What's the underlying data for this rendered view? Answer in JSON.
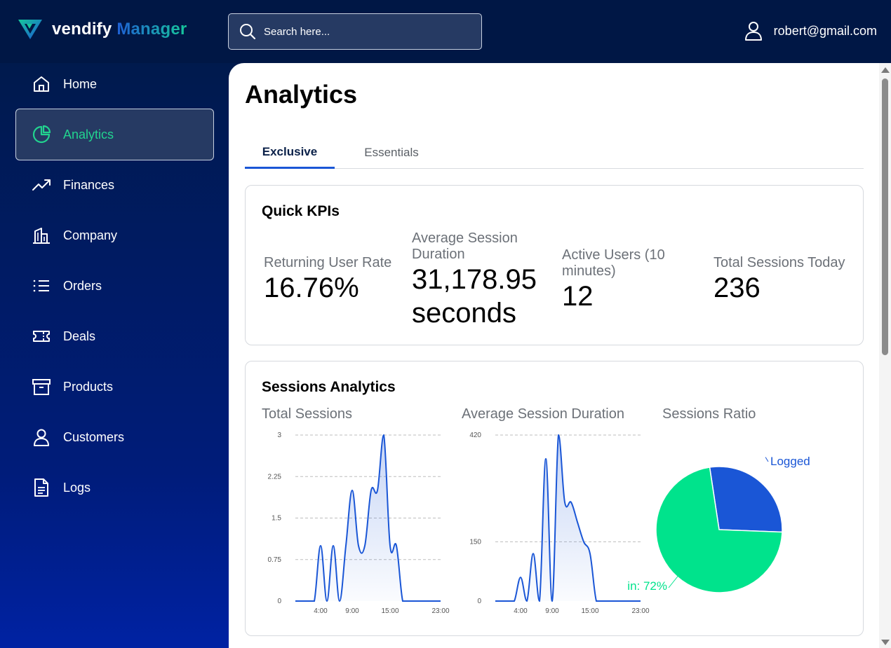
{
  "app": {
    "brand_part1": "vendify",
    "brand_part2": "Manager",
    "colors": {
      "accent": "#22d38f",
      "brand_blue": "#1a56d6",
      "navy": "#001745"
    }
  },
  "header": {
    "search_placeholder": "Search here...",
    "user_email": "robert@gmail.com"
  },
  "sidebar": {
    "items": [
      {
        "label": "Home",
        "icon": "home-icon"
      },
      {
        "label": "Analytics",
        "icon": "pie-chart-icon",
        "active": true
      },
      {
        "label": "Finances",
        "icon": "trending-up-icon"
      },
      {
        "label": "Company",
        "icon": "building-icon"
      },
      {
        "label": "Orders",
        "icon": "list-icon"
      },
      {
        "label": "Deals",
        "icon": "ticket-icon"
      },
      {
        "label": "Products",
        "icon": "archive-box-icon"
      },
      {
        "label": "Customers",
        "icon": "user-icon"
      },
      {
        "label": "Logs",
        "icon": "document-icon"
      }
    ]
  },
  "main": {
    "title": "Analytics",
    "tabs": [
      {
        "label": "Exclusive",
        "active": true
      },
      {
        "label": "Essentials",
        "active": false
      }
    ],
    "kpis": {
      "title": "Quick KPIs",
      "items": [
        {
          "label": "Returning User Rate",
          "value": "16.76%"
        },
        {
          "label": "Average Session Duration",
          "value": "31,178.95 seconds"
        },
        {
          "label": "Active Users (10 minutes)",
          "value": "12"
        },
        {
          "label": "Total Sessions Today",
          "value": "236"
        }
      ]
    },
    "sessions": {
      "title": "Sessions Analytics",
      "chart_titles": [
        "Total Sessions",
        "Average Session Duration",
        "Sessions Ratio"
      ]
    }
  },
  "chart_data": [
    {
      "type": "area",
      "title": "Total Sessions",
      "x_ticks": [
        "4:00",
        "9:00",
        "15:00",
        "23:00"
      ],
      "y_ticks": [
        "0",
        "0.75",
        "1.5",
        "2.25",
        "3"
      ],
      "ylim": [
        0,
        3
      ],
      "xlim": [
        0,
        23
      ],
      "grid": true,
      "x": [
        0,
        1,
        2,
        3,
        4,
        5,
        6,
        7,
        8,
        9,
        10,
        11,
        12,
        13,
        14,
        15,
        16,
        17,
        18,
        19,
        20,
        21,
        22,
        23
      ],
      "values": [
        0,
        0,
        0,
        0,
        1,
        0,
        1,
        0,
        1,
        2,
        1,
        1,
        2,
        2,
        3,
        1,
        1,
        0,
        0,
        0,
        0,
        0,
        0,
        0
      ]
    },
    {
      "type": "area",
      "title": "Average Session Duration",
      "x_ticks": [
        "4:00",
        "9:00",
        "15:00",
        "23:00"
      ],
      "y_ticks": [
        "0",
        "150",
        "420"
      ],
      "ylim": [
        0,
        420
      ],
      "xlim": [
        0,
        23
      ],
      "grid": true,
      "x": [
        0,
        1,
        2,
        3,
        4,
        5,
        6,
        7,
        8,
        9,
        10,
        11,
        12,
        13,
        14,
        15,
        16,
        17,
        18,
        19,
        20,
        21,
        22,
        23
      ],
      "values": [
        0,
        0,
        0,
        0,
        60,
        0,
        120,
        0,
        360,
        0,
        420,
        250,
        250,
        200,
        150,
        120,
        0,
        0,
        0,
        0,
        0,
        0,
        0,
        0
      ]
    },
    {
      "type": "pie",
      "title": "Sessions Ratio",
      "labels": [
        "Logged",
        "Logged in"
      ],
      "visible_label_texts": [
        "Logged",
        "in: 72%"
      ],
      "values": [
        28,
        72
      ],
      "colors": [
        "#1a56d6",
        "#00e38c"
      ]
    }
  ]
}
